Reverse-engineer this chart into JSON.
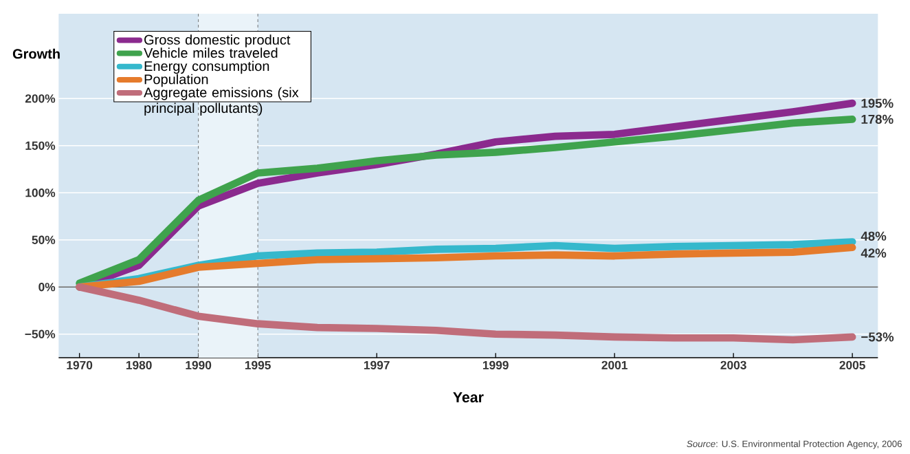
{
  "chart_data": {
    "type": "line",
    "ylabel": "Growth",
    "xlabel": "Year",
    "categories": [
      "1970",
      "1980",
      "1990",
      "1995",
      null,
      "1997",
      null,
      "1999",
      null,
      "2001",
      null,
      "2003",
      null,
      "2005"
    ],
    "series": [
      {
        "name": "Gross domestic product",
        "color": "#8b2a8e",
        "values": [
          0,
          23,
          86,
          110,
          121,
          130,
          141,
          154,
          160,
          162,
          170,
          178,
          186,
          195
        ],
        "value_labels": [
          null,
          null,
          null,
          null,
          null,
          null,
          null,
          null,
          null,
          null,
          null,
          null,
          null,
          "195%"
        ]
      },
      {
        "name": "Vehicle miles traveled",
        "color": "#3fa34d",
        "values": [
          4,
          29,
          92,
          121,
          126,
          134,
          140,
          143,
          148,
          154,
          160,
          167,
          174,
          178
        ],
        "value_labels": [
          null,
          null,
          null,
          null,
          null,
          null,
          null,
          null,
          null,
          null,
          null,
          null,
          null,
          "178%"
        ]
      },
      {
        "name": "Energy consumption",
        "color": "#35b8cc",
        "values": [
          0,
          9,
          23,
          33,
          36,
          37,
          40,
          41,
          44,
          41,
          43,
          44,
          45,
          48
        ],
        "value_labels": [
          null,
          null,
          null,
          null,
          null,
          null,
          null,
          null,
          null,
          null,
          null,
          null,
          null,
          "48%"
        ]
      },
      {
        "name": "Population",
        "color": "#e57b2c",
        "values": [
          0,
          6,
          21,
          25,
          29,
          30,
          31,
          33,
          34,
          33,
          35,
          36,
          37,
          42
        ],
        "value_labels": [
          null,
          null,
          null,
          null,
          null,
          null,
          null,
          null,
          null,
          null,
          null,
          null,
          null,
          "42%"
        ]
      },
      {
        "name": "Aggregate emissions (six principal pollutants)",
        "color": "#c06d7a",
        "values": [
          0,
          -14,
          -31,
          -39,
          -43,
          -44,
          -46,
          -50,
          -51,
          -53,
          -54,
          -54,
          -56,
          -53
        ],
        "value_labels": [
          null,
          null,
          null,
          null,
          null,
          null,
          null,
          null,
          null,
          null,
          null,
          null,
          null,
          "−53%"
        ]
      }
    ],
    "ylim": [
      -75,
      290
    ],
    "yticks": [
      {
        "value": -50,
        "label": "−50%"
      },
      {
        "value": 0,
        "label": "0%"
      },
      {
        "value": 50,
        "label": "50%"
      },
      {
        "value": 100,
        "label": "100%"
      },
      {
        "value": 150,
        "label": "150%"
      },
      {
        "value": 200,
        "label": "200%"
      }
    ],
    "grid": "y",
    "legend": "top left",
    "line_style": "solid",
    "marker": "none",
    "ref_lines": [
      {
        "axis": "y",
        "value": 0,
        "color": "#666666",
        "line_style": "solid"
      },
      {
        "axis": "x",
        "value": "1990",
        "color": "#555555",
        "line_style": "dashed"
      },
      {
        "axis": "x",
        "value": "1995",
        "color": "#555555",
        "line_style": "dashed"
      }
    ],
    "bands": [
      {
        "axis": "x",
        "from": "1990",
        "to": "1995",
        "color": "#eaf3f9"
      }
    ],
    "annotations": [
      "*Source*: U.S. Environmental Protection Agency, 2006"
    ]
  }
}
